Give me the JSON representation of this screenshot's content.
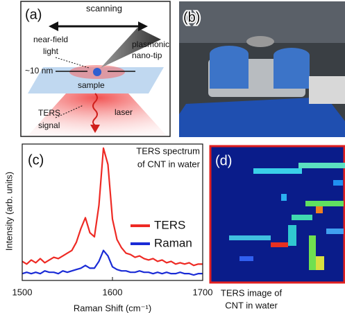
{
  "panel_a": {
    "label": "(a)",
    "scanning": "scanning",
    "near_field": [
      "near-field",
      "light"
    ],
    "tip": [
      "plasmonic",
      "nano-tip"
    ],
    "size": "~10 nm",
    "sample": "sample",
    "laser": "laser",
    "signal": [
      "TERS",
      "signal"
    ]
  },
  "panel_b": {
    "label": "(b)"
  },
  "chart_data": {
    "type": "line",
    "label": "(c)",
    "annotation": [
      "TERS spectrum",
      "of CNT in water"
    ],
    "xlabel": "Raman Shift (cm⁻¹)",
    "ylabel": "Intensity (arb. units)",
    "x": [
      1500,
      1505,
      1510,
      1515,
      1520,
      1525,
      1530,
      1535,
      1540,
      1545,
      1550,
      1555,
      1560,
      1565,
      1570,
      1575,
      1580,
      1585,
      1590,
      1595,
      1600,
      1605,
      1610,
      1615,
      1620,
      1625,
      1630,
      1635,
      1640,
      1645,
      1650,
      1655,
      1660,
      1665,
      1670,
      1675,
      1680,
      1685,
      1690,
      1695,
      1700
    ],
    "series": [
      {
        "name": "TERS",
        "color": "#ee2a24",
        "values": [
          14,
          12,
          15,
          13,
          16,
          13,
          15,
          17,
          16,
          18,
          20,
          22,
          28,
          38,
          46,
          35,
          32,
          55,
          97,
          85,
          45,
          30,
          24,
          20,
          19,
          17,
          18,
          16,
          15,
          16,
          14,
          15,
          13,
          14,
          12,
          13,
          12,
          13,
          11,
          12,
          12
        ]
      },
      {
        "name": "Raman",
        "color": "#1a2bd6",
        "values": [
          5,
          6,
          5,
          6,
          5,
          7,
          6,
          6,
          5,
          7,
          6,
          7,
          8,
          9,
          11,
          9,
          9,
          14,
          22,
          18,
          10,
          8,
          7,
          7,
          6,
          6,
          7,
          6,
          6,
          5,
          6,
          5,
          6,
          5,
          5,
          6,
          5,
          5,
          4,
          5,
          5
        ]
      }
    ],
    "xlim": [
      1500,
      1700
    ],
    "xticks": [
      1500,
      1600,
      1700
    ],
    "ylim": [
      0,
      100
    ],
    "legend": "right"
  },
  "panel_d": {
    "label": "(d)",
    "caption": [
      "TERS image of",
      "CNT in water"
    ]
  }
}
